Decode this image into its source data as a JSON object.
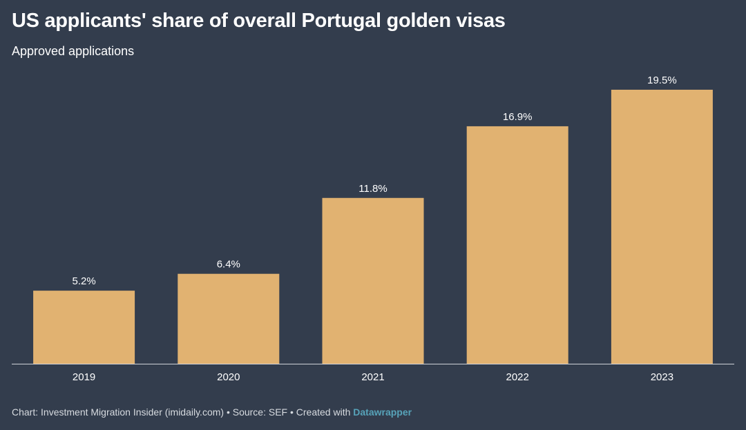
{
  "title": "US applicants' share of overall Portugal golden visas",
  "subtitle": "Approved applications",
  "footer": {
    "text": "Chart: Investment Migration Insider (imidaily.com) • Source: SEF • Created with ",
    "link": "Datawrapper"
  },
  "colors": {
    "background": "#333d4d",
    "bar": "#e1b271",
    "text": "#ffffff",
    "axis": "#d0d4da",
    "link": "#57a3b9"
  },
  "chart_data": {
    "type": "bar",
    "title": "US applicants' share of overall Portugal golden visas",
    "subtitle": "Approved applications",
    "categories": [
      "2019",
      "2020",
      "2021",
      "2022",
      "2023"
    ],
    "values": [
      5.2,
      6.4,
      11.8,
      16.9,
      19.5
    ],
    "value_labels": [
      "5.2%",
      "6.4%",
      "11.8%",
      "16.9%",
      "19.5%"
    ],
    "xlabel": "",
    "ylabel": "",
    "ylim": [
      0,
      19.5
    ],
    "grid": false,
    "legend": "none"
  }
}
